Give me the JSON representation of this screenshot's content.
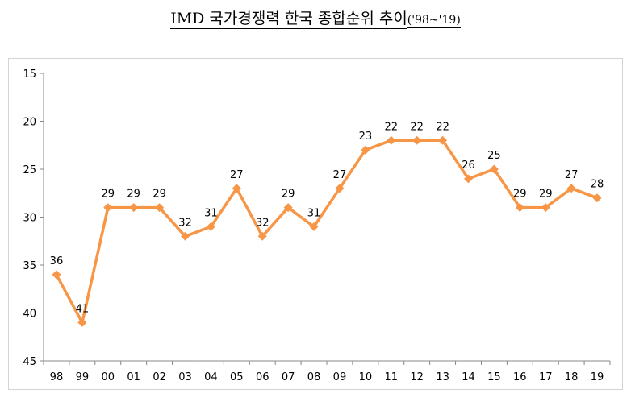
{
  "title": {
    "main": "IMD 국가경쟁력 한국 종합순위 추이",
    "sub": "('98~'19)"
  },
  "chart_data": {
    "type": "line",
    "title": "IMD 국가경쟁력 한국 종합순위 추이('98~'19)",
    "xlabel": "",
    "ylabel": "",
    "categories": [
      "98",
      "99",
      "00",
      "01",
      "02",
      "03",
      "04",
      "05",
      "06",
      "07",
      "08",
      "09",
      "10",
      "11",
      "12",
      "13",
      "14",
      "15",
      "16",
      "17",
      "18",
      "19"
    ],
    "series": [
      {
        "values": [
          36,
          41,
          29,
          29,
          29,
          32,
          31,
          27,
          32,
          29,
          31,
          27,
          23,
          22,
          22,
          22,
          26,
          25,
          29,
          29,
          27,
          28
        ]
      }
    ],
    "ylim": [
      45,
      15
    ],
    "y_inverted": true,
    "yticks": [
      15,
      20,
      25,
      30,
      35,
      40,
      45
    ],
    "data_labels": true,
    "legend": "none",
    "grid": false,
    "colors": {
      "line": "#F79646",
      "marker": "#F79646"
    }
  }
}
